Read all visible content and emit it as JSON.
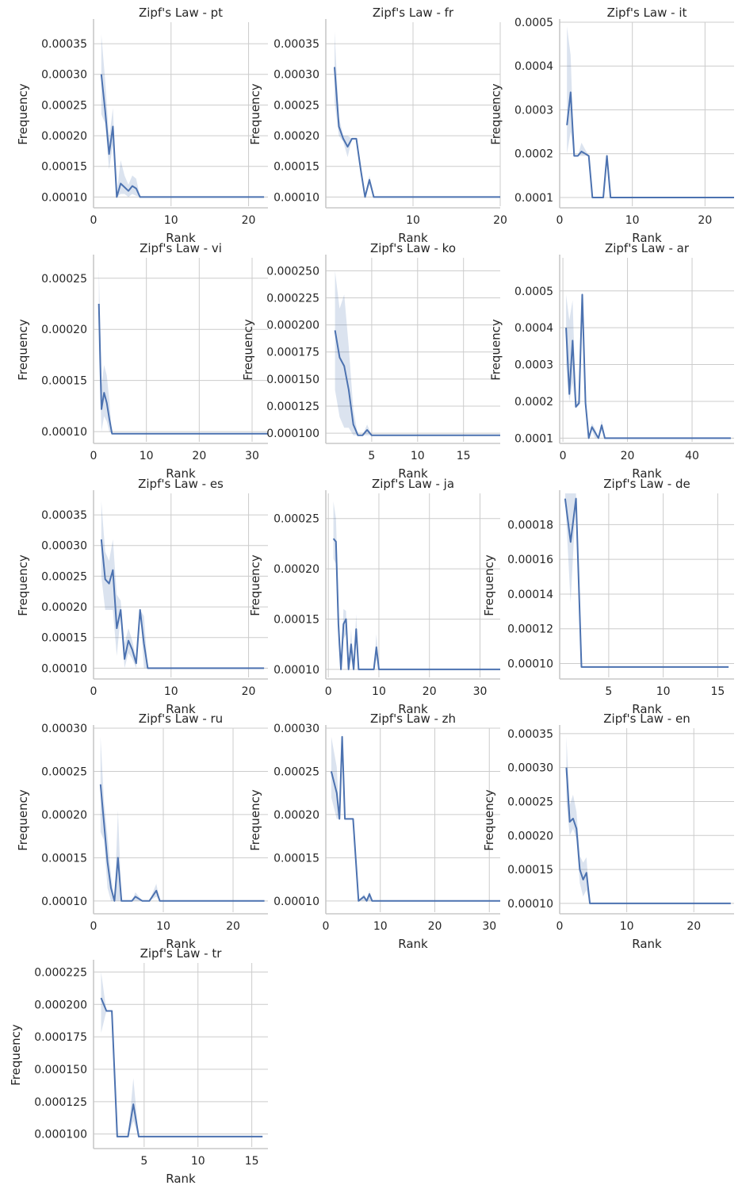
{
  "chart_data": [
    {
      "type": "line",
      "title": "Zipf's Law - pt",
      "xlabel": "Rank",
      "ylabel": "Frequency",
      "xlim": [
        0,
        22.5
      ],
      "ylim": [
        8.5e-05,
        0.000385
      ],
      "xticks": [
        0,
        10,
        20
      ],
      "xtick_labels": [
        "0",
        "10",
        "20"
      ],
      "yticks": [
        0.0001,
        0.00015,
        0.0002,
        0.00025,
        0.0003,
        0.00035
      ],
      "ytick_labels": [
        "0.00010",
        "0.00015",
        "0.00020",
        "0.00025",
        "0.00030",
        "0.00035"
      ],
      "x": [
        1,
        1.5,
        2,
        2.5,
        3,
        3.5,
        4,
        4.5,
        5,
        5.5,
        6,
        22
      ],
      "y": [
        0.0003,
        0.00024,
        0.00017,
        0.000215,
        0.0001,
        0.000122,
        0.000116,
        0.00011,
        0.000118,
        0.000114,
        0.0001,
        0.0001
      ],
      "y_lower": [
        0.000235,
        0.00022,
        0.000145,
        0.000185,
        0.0001,
        0.000105,
        0.000105,
        0.0001,
        0.000105,
        0.000102,
        0.0001,
        0.0001
      ],
      "y_upper": [
        0.000365,
        0.00029,
        0.000195,
        0.000245,
        0.000105,
        0.00016,
        0.000135,
        0.00012,
        0.000135,
        0.00013,
        0.0001,
        0.0001
      ],
      "show_xlabel": true
    },
    {
      "type": "line",
      "title": "Zipf's Law - fr",
      "xlabel": "Rank",
      "ylabel": "Frequency",
      "xlim": [
        0,
        20
      ],
      "ylim": [
        8.5e-05,
        0.000385
      ],
      "xticks": [
        10,
        20
      ],
      "xtick_labels": [
        "10",
        "20"
      ],
      "yticks": [
        0.0001,
        0.00015,
        0.0002,
        0.00025,
        0.0003,
        0.00035
      ],
      "ytick_labels": [
        "0.00010",
        "0.00015",
        "0.00020",
        "0.00025",
        "0.00030",
        "0.00035"
      ],
      "x": [
        1,
        1.5,
        2,
        2.5,
        3,
        3.5,
        4,
        4.5,
        5,
        5.5,
        6,
        20
      ],
      "y": [
        0.000312,
        0.000215,
        0.000195,
        0.000182,
        0.000195,
        0.000195,
        0.000145,
        0.0001,
        0.000128,
        0.0001,
        0.0001,
        0.0001
      ],
      "y_lower": [
        0.000255,
        0.0002,
        0.00019,
        0.000165,
        0.000195,
        0.000195,
        0.000135,
        0.0001,
        0.00012,
        0.0001,
        0.0001,
        0.0001
      ],
      "y_upper": [
        0.00037,
        0.00023,
        0.0002,
        0.0002,
        0.000195,
        0.000195,
        0.000155,
        0.0001,
        0.000135,
        0.0001,
        0.0001,
        0.0001
      ],
      "show_xlabel": true
    },
    {
      "type": "line",
      "title": "Zipf's Law - it",
      "xlabel": "Rank",
      "ylabel": "Frequency",
      "xlim": [
        0,
        24
      ],
      "ylim": [
        8e-05,
        0.0005
      ],
      "xticks": [
        0,
        10,
        20
      ],
      "xtick_labels": [
        "0",
        "10",
        "20"
      ],
      "yticks": [
        0.0001,
        0.0002,
        0.0003,
        0.0004,
        0.0005
      ],
      "ytick_labels": [
        "0.0001",
        "0.0002",
        "0.0003",
        "0.0004",
        "0.0005"
      ],
      "x": [
        1,
        1.5,
        2,
        2.5,
        3,
        3.5,
        4,
        4.5,
        5,
        5.5,
        6,
        6.5,
        7,
        24
      ],
      "y": [
        0.000265,
        0.00034,
        0.000195,
        0.000195,
        0.000205,
        0.0002,
        0.000195,
        0.0001,
        0.0001,
        0.0001,
        0.0001,
        0.000195,
        0.0001,
        0.0001
      ],
      "y_lower": [
        0.0002,
        0.00025,
        0.000195,
        0.000195,
        0.000195,
        0.000195,
        0.000195,
        0.0001,
        0.0001,
        0.0001,
        0.0001,
        0.000195,
        0.0001,
        0.0001
      ],
      "y_upper": [
        0.00049,
        0.000425,
        0.000195,
        0.000195,
        0.000225,
        0.00021,
        0.000195,
        0.0001,
        0.0001,
        0.0001,
        0.0001,
        0.000195,
        0.0001,
        0.0001
      ],
      "show_xlabel": true
    },
    {
      "type": "line",
      "title": "Zipf's Law - vi",
      "xlabel": "Rank",
      "ylabel": "Frequency",
      "xlim": [
        0,
        33
      ],
      "ylim": [
        9e-05,
        0.00027
      ],
      "xticks": [
        0,
        10,
        20,
        30
      ],
      "xtick_labels": [
        "0",
        "10",
        "20",
        "30"
      ],
      "yticks": [
        0.0001,
        0.00015,
        0.0002,
        0.00025
      ],
      "ytick_labels": [
        "0.00010",
        "0.00015",
        "0.00020",
        "0.00025"
      ],
      "x": [
        1,
        1.5,
        2,
        2.5,
        3,
        3.5,
        4,
        33
      ],
      "y": [
        0.000225,
        0.000122,
        0.000138,
        0.000128,
        0.000112,
        9.8e-05,
        9.8e-05,
        9.8e-05
      ],
      "y_lower": [
        0.00018,
        0.0001,
        0.000115,
        0.00011,
        0.0001,
        9.8e-05,
        9.8e-05,
        9.8e-05
      ],
      "y_upper": [
        0.000262,
        0.000145,
        0.000165,
        0.000155,
        0.00013,
        9.8e-05,
        9.8e-05,
        9.8e-05
      ],
      "show_xlabel": true
    },
    {
      "type": "line",
      "title": "Zipf's Law - ko",
      "xlabel": "Rank",
      "ylabel": "Frequency",
      "xlim": [
        0,
        19
      ],
      "ylim": [
        9.2e-05,
        0.000262
      ],
      "xticks": [
        5,
        10,
        15
      ],
      "xtick_labels": [
        "5",
        "10",
        "15"
      ],
      "yticks": [
        0.0001,
        0.000125,
        0.00015,
        0.000175,
        0.0002,
        0.000225,
        0.00025
      ],
      "ytick_labels": [
        "0.000100",
        "0.000125",
        "0.000150",
        "0.000175",
        "0.000200",
        "0.000225",
        "0.000250"
      ],
      "x": [
        1,
        1.5,
        2,
        2.5,
        3,
        3.5,
        4,
        4.5,
        5,
        19
      ],
      "y": [
        0.000195,
        0.00017,
        0.000162,
        0.00014,
        0.000108,
        9.8e-05,
        9.8e-05,
        0.000103,
        9.8e-05,
        9.8e-05
      ],
      "y_lower": [
        0.00014,
        0.000115,
        0.000105,
        0.000105,
        9.8e-05,
        9.8e-05,
        9.8e-05,
        9.8e-05,
        9.8e-05,
        9.8e-05
      ],
      "y_upper": [
        0.00025,
        0.000215,
        0.000228,
        0.00018,
        0.000122,
        9.8e-05,
        9.8e-05,
        0.000108,
        9.8e-05,
        9.8e-05
      ],
      "show_xlabel": true
    },
    {
      "type": "line",
      "title": "Zipf's Law - ar",
      "xlabel": "Rank",
      "ylabel": "Frequency",
      "xlim": [
        -1,
        53
      ],
      "ylim": [
        9e-05,
        0.00059
      ],
      "xticks": [
        0,
        20,
        40
      ],
      "xtick_labels": [
        "0",
        "20",
        "40"
      ],
      "yticks": [
        0.0001,
        0.0002,
        0.0003,
        0.0004,
        0.0005
      ],
      "ytick_labels": [
        "0.0001",
        "0.0002",
        "0.0003",
        "0.0004",
        "0.0005"
      ],
      "x": [
        1,
        2,
        3,
        4,
        5,
        6,
        7,
        8,
        9,
        10,
        11,
        12,
        13,
        52
      ],
      "y": [
        0.0004,
        0.00022,
        0.000365,
        0.000185,
        0.000195,
        0.00049,
        0.000195,
        0.0001,
        0.00013,
        0.000115,
        0.0001,
        0.000135,
        0.0001,
        0.0001
      ],
      "y_lower": [
        0.0003,
        0.0002,
        0.00025,
        0.00018,
        0.00019,
        0.00049,
        0.000185,
        0.0001,
        0.00012,
        0.0001,
        0.0001,
        0.00012,
        0.0001,
        0.0001
      ],
      "y_upper": [
        0.00049,
        0.00042,
        0.000475,
        0.0002,
        0.0002,
        0.00049,
        0.0002,
        0.0001,
        0.00014,
        0.000125,
        0.0001,
        0.00015,
        0.0001,
        0.0001
      ],
      "show_xlabel": true
    },
    {
      "type": "line",
      "title": "Zipf's Law - es",
      "xlabel": "Rank",
      "ylabel": "Frequency",
      "xlim": [
        0,
        22.5
      ],
      "ylim": [
        8.5e-05,
        0.000385
      ],
      "xticks": [
        0,
        10,
        20
      ],
      "xtick_labels": [
        "0",
        "10",
        "20"
      ],
      "yticks": [
        0.0001,
        0.00015,
        0.0002,
        0.00025,
        0.0003,
        0.00035
      ],
      "ytick_labels": [
        "0.00010",
        "0.00015",
        "0.00020",
        "0.00025",
        "0.00030",
        "0.00035"
      ],
      "x": [
        1,
        1.5,
        2,
        2.5,
        3,
        3.5,
        4,
        4.5,
        5,
        5.5,
        6,
        6.5,
        7,
        22
      ],
      "y": [
        0.00031,
        0.000245,
        0.000238,
        0.00026,
        0.000165,
        0.000195,
        0.000115,
        0.000145,
        0.00013,
        0.000108,
        0.000195,
        0.00014,
        0.0001,
        0.0001
      ],
      "y_lower": [
        0.00025,
        0.000195,
        0.000195,
        0.000195,
        0.00012,
        0.000185,
        0.0001,
        0.000125,
        0.000115,
        0.0001,
        0.000195,
        0.0001,
        0.0001,
        0.0001
      ],
      "y_upper": [
        0.000372,
        0.00029,
        0.000275,
        0.00031,
        0.00022,
        0.00021,
        0.00014,
        0.000165,
        0.000145,
        0.000115,
        0.000195,
        0.000185,
        0.0001,
        0.0001
      ],
      "show_xlabel": true
    },
    {
      "type": "line",
      "title": "Zipf's Law - ja",
      "xlabel": "Rank",
      "ylabel": "Frequency",
      "xlim": [
        -0.5,
        34
      ],
      "ylim": [
        9.2e-05,
        0.000275
      ],
      "xticks": [
        0,
        10,
        20,
        30
      ],
      "xtick_labels": [
        "0",
        "10",
        "20",
        "30"
      ],
      "yticks": [
        0.0001,
        0.00015,
        0.0002,
        0.00025
      ],
      "ytick_labels": [
        "0.00010",
        "0.00015",
        "0.00020",
        "0.00025"
      ],
      "x": [
        1,
        1.5,
        2,
        2.5,
        3,
        3.5,
        4,
        4.5,
        5,
        5.5,
        6,
        6.5,
        7,
        8,
        9,
        9.5,
        10,
        34
      ],
      "y": [
        0.00023,
        0.000227,
        0.000145,
        0.0001,
        0.000145,
        0.00015,
        0.0001,
        0.000125,
        0.0001,
        0.00014,
        0.0001,
        0.0001,
        0.0001,
        0.0001,
        0.0001,
        0.000122,
        0.0001,
        0.0001
      ],
      "y_lower": [
        0.00021,
        0.000205,
        0.000125,
        0.0001,
        0.00013,
        0.000135,
        0.0001,
        0.00011,
        0.0001,
        0.000125,
        0.0001,
        0.0001,
        0.0001,
        0.0001,
        0.0001,
        0.00011,
        0.0001,
        0.0001
      ],
      "y_upper": [
        0.000267,
        0.00025,
        0.00017,
        0.0001,
        0.00016,
        0.000158,
        0.0001,
        0.00014,
        0.0001,
        0.000155,
        0.0001,
        0.0001,
        0.0001,
        0.0001,
        0.0001,
        0.000135,
        0.0001,
        0.0001
      ],
      "show_xlabel": true
    },
    {
      "type": "line",
      "title": "Zipf's Law - de",
      "xlabel": "Rank",
      "ylabel": "Frequency",
      "xlim": [
        0.5,
        16.5
      ],
      "ylim": [
        9.2e-05,
        0.000198
      ],
      "xticks": [
        5,
        10,
        15
      ],
      "xtick_labels": [
        "5",
        "10",
        "15"
      ],
      "yticks": [
        0.0001,
        0.00012,
        0.00014,
        0.00016,
        0.00018
      ],
      "ytick_labels": [
        "0.00010",
        "0.00012",
        "0.00014",
        "0.00016",
        "0.00018"
      ],
      "x": [
        1,
        1.5,
        2,
        2.5,
        16
      ],
      "y": [
        0.000195,
        0.00017,
        0.000195,
        9.8e-05,
        9.8e-05
      ],
      "y_lower": [
        0.000195,
        0.000135,
        0.000195,
        9.8e-05,
        9.8e-05
      ],
      "y_upper": [
        0.000198,
        0.000198,
        0.000198,
        9.8e-05,
        9.8e-05
      ],
      "show_xlabel": true
    },
    {
      "type": "line",
      "title": "Zipf's Law - ru",
      "xlabel": "Rank",
      "ylabel": "Frequency",
      "xlim": [
        0,
        25
      ],
      "ylim": [
        8.7e-05,
        0.0003
      ],
      "xticks": [
        0,
        10,
        20
      ],
      "xtick_labels": [
        "0",
        "10",
        "20"
      ],
      "yticks": [
        0.0001,
        0.00015,
        0.0002,
        0.00025,
        0.0003
      ],
      "ytick_labels": [
        "0.00010",
        "0.00015",
        "0.00020",
        "0.00025",
        "0.00030"
      ],
      "x": [
        1,
        1.5,
        2,
        2.5,
        3,
        3.5,
        4,
        4.5,
        5,
        5.5,
        6,
        7,
        8,
        9,
        9.5,
        10,
        24.5
      ],
      "y": [
        0.000235,
        0.00019,
        0.000145,
        0.000115,
        0.0001,
        0.00015,
        0.0001,
        0.0001,
        0.0001,
        0.0001,
        0.000105,
        0.0001,
        0.0001,
        0.000112,
        0.0001,
        0.0001,
        0.0001
      ],
      "y_lower": [
        0.00018,
        0.00017,
        0.000115,
        0.0001,
        0.0001,
        0.0001,
        0.0001,
        0.0001,
        0.0001,
        0.0001,
        0.0001,
        0.0001,
        0.0001,
        0.000105,
        0.0001,
        0.0001,
        0.0001
      ],
      "y_upper": [
        0.00029,
        0.000215,
        0.000175,
        0.00013,
        0.0001,
        0.000205,
        0.0001,
        0.0001,
        0.0001,
        0.0001,
        0.00011,
        0.0001,
        0.0001,
        0.00012,
        0.0001,
        0.0001,
        0.0001
      ],
      "show_xlabel": true
    },
    {
      "type": "line",
      "title": "Zipf's Law - zh",
      "xlabel": "Rank",
      "ylabel": "Frequency",
      "xlim": [
        0,
        32
      ],
      "ylim": [
        8.7e-05,
        0.0003
      ],
      "xticks": [
        0,
        10,
        20,
        30
      ],
      "xtick_labels": [
        "0",
        "10",
        "20",
        "30"
      ],
      "yticks": [
        0.0001,
        0.00015,
        0.0002,
        0.00025,
        0.0003
      ],
      "ytick_labels": [
        "0.00010",
        "0.00015",
        "0.00020",
        "0.00025",
        "0.00030"
      ],
      "x": [
        1,
        2,
        2.5,
        3,
        3.5,
        4,
        5,
        6,
        7,
        7.5,
        8,
        8.5,
        32
      ],
      "y": [
        0.00025,
        0.000225,
        0.000195,
        0.00029,
        0.000195,
        0.000195,
        0.000195,
        0.0001,
        0.000105,
        0.0001,
        0.000108,
        0.0001,
        0.0001
      ],
      "y_lower": [
        0.00022,
        0.000195,
        0.000195,
        0.00029,
        0.000195,
        0.000195,
        0.000195,
        0.0001,
        0.0001,
        0.0001,
        0.0001,
        0.0001,
        0.0001
      ],
      "y_upper": [
        0.00029,
        0.000255,
        0.000195,
        0.000295,
        0.000195,
        0.000195,
        0.000195,
        0.0001,
        0.000108,
        0.0001,
        0.000112,
        0.0001,
        0.0001
      ],
      "show_xlabel": true
    },
    {
      "type": "line",
      "title": "Zipf's Law - en",
      "xlabel": "Rank",
      "ylabel": "Frequency",
      "xlim": [
        0,
        26
      ],
      "ylim": [
        8.7e-05,
        0.000358
      ],
      "xticks": [
        0,
        10,
        20
      ],
      "xtick_labels": [
        "0",
        "10",
        "20"
      ],
      "yticks": [
        0.0001,
        0.00015,
        0.0002,
        0.00025,
        0.0003,
        0.00035
      ],
      "ytick_labels": [
        "0.00010",
        "0.00015",
        "0.00020",
        "0.00025",
        "0.00030",
        "0.00035"
      ],
      "x": [
        1,
        1.5,
        2,
        2.5,
        3,
        3.5,
        4,
        4.5,
        5,
        25.5
      ],
      "y": [
        0.0003,
        0.00022,
        0.000225,
        0.00021,
        0.00015,
        0.000135,
        0.000145,
        0.0001,
        0.0001,
        0.0001
      ],
      "y_lower": [
        0.00025,
        0.0002,
        0.00021,
        0.000195,
        0.00013,
        0.00011,
        0.00012,
        0.0001,
        0.0001,
        0.0001
      ],
      "y_upper": [
        0.000345,
        0.000245,
        0.00026,
        0.000235,
        0.00017,
        0.00016,
        0.000168,
        0.0001,
        0.0001,
        0.0001
      ],
      "show_xlabel": true
    },
    {
      "type": "line",
      "title": "Zipf's Law - tr",
      "xlabel": "Rank",
      "ylabel": "Frequency",
      "xlim": [
        0.3,
        16.5
      ],
      "ylim": [
        9e-05,
        0.000232
      ],
      "xticks": [
        5,
        10,
        15
      ],
      "xtick_labels": [
        "5",
        "10",
        "15"
      ],
      "yticks": [
        0.0001,
        0.000125,
        0.00015,
        0.000175,
        0.0002,
        0.000225
      ],
      "ytick_labels": [
        "0.000100",
        "0.000125",
        "0.000150",
        "0.000175",
        "0.000200",
        "0.000225"
      ],
      "x": [
        1,
        1.5,
        2,
        2.5,
        3,
        3.5,
        4,
        4.5,
        5,
        16
      ],
      "y": [
        0.000205,
        0.000195,
        0.000195,
        9.8e-05,
        9.8e-05,
        9.8e-05,
        0.000123,
        9.8e-05,
        9.8e-05,
        9.8e-05
      ],
      "y_lower": [
        0.000178,
        0.000195,
        0.000195,
        9.8e-05,
        9.8e-05,
        9.8e-05,
        0.00011,
        9.8e-05,
        9.8e-05,
        9.8e-05
      ],
      "y_upper": [
        0.000225,
        0.000195,
        0.000195,
        9.8e-05,
        9.8e-05,
        9.8e-05,
        0.000143,
        9.8e-05,
        9.8e-05,
        9.8e-05
      ],
      "show_xlabel": true
    }
  ]
}
